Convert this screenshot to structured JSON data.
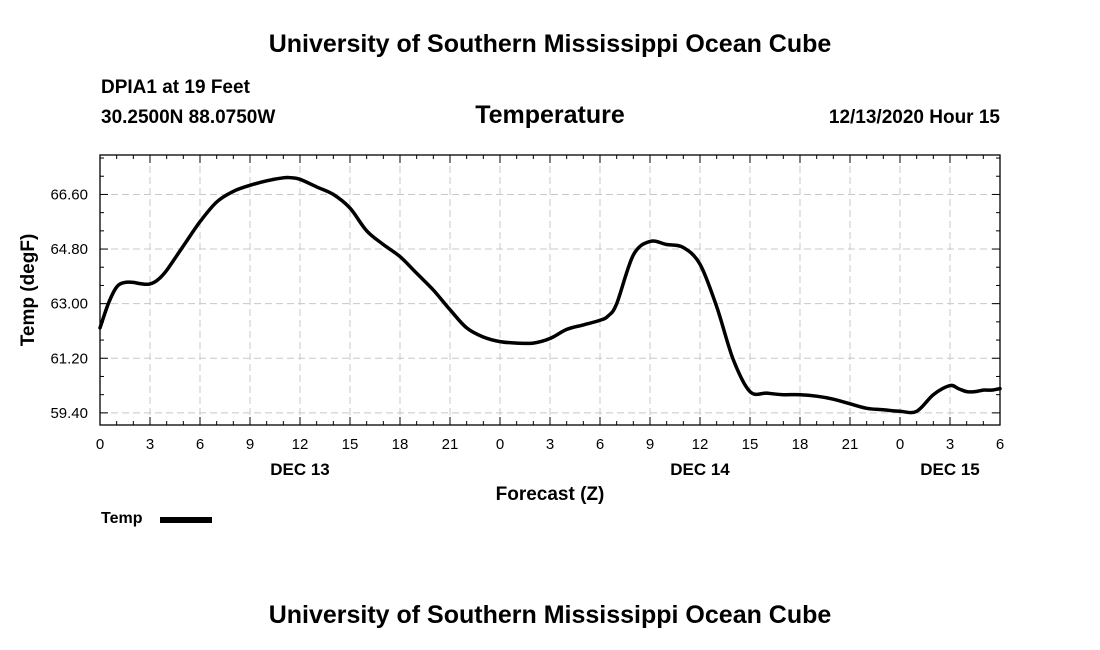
{
  "header": {
    "top_title": "University of Southern Mississippi Ocean Cube",
    "station": "DPIA1 at 19 Feet",
    "coords": "30.2500N 88.0750W",
    "chart_title": "Temperature",
    "datetime": "12/13/2020 Hour 15"
  },
  "footer": {
    "bottom_title": "University of Southern Mississippi Ocean Cube"
  },
  "legend": {
    "label": "Temp",
    "line_color": "#000000"
  },
  "chart_data": {
    "type": "line",
    "title": "Temperature",
    "xlabel": "Forecast (Z)",
    "ylabel": "Temp (degF)",
    "grid": true,
    "xlim": [
      0,
      54
    ],
    "ylim": [
      59.0,
      67.9
    ],
    "x_ticks": [
      0,
      3,
      6,
      9,
      12,
      15,
      18,
      21,
      24,
      27,
      30,
      33,
      36,
      39,
      42,
      45,
      48,
      51,
      54
    ],
    "x_tick_labels": [
      "0",
      "3",
      "6",
      "9",
      "12",
      "15",
      "18",
      "21",
      "0",
      "3",
      "6",
      "9",
      "12",
      "15",
      "18",
      "21",
      "0",
      "3",
      "6"
    ],
    "day_labels": [
      {
        "x": 12,
        "label": "DEC 13"
      },
      {
        "x": 36,
        "label": "DEC 14"
      },
      {
        "x": 51,
        "label": "DEC 15"
      }
    ],
    "y_ticks": [
      59.4,
      61.2,
      63.0,
      64.8,
      66.6
    ],
    "y_tick_labels": [
      "59.40",
      "61.20",
      "63.00",
      "64.80",
      "66.60"
    ],
    "series": [
      {
        "name": "Temp",
        "color": "#000000",
        "x": [
          0,
          0.5,
          1,
          1.5,
          2,
          2.5,
          3,
          3.5,
          4,
          5,
          6,
          7,
          8,
          9,
          10,
          11,
          11.5,
          12,
          13,
          14,
          15,
          16,
          17,
          18,
          19,
          20,
          21,
          22,
          23,
          24,
          25,
          26,
          27,
          28,
          29,
          30,
          30.5,
          31,
          32,
          33,
          34,
          35,
          36,
          37,
          38,
          39,
          40,
          41,
          42,
          43,
          44,
          45,
          46,
          47,
          48,
          49,
          50,
          51,
          51.5,
          52,
          52.5,
          53,
          53.5,
          54
        ],
        "values": [
          62.2,
          63.0,
          63.55,
          63.7,
          63.7,
          63.65,
          63.65,
          63.8,
          64.1,
          64.9,
          65.7,
          66.35,
          66.7,
          66.9,
          67.05,
          67.15,
          67.15,
          67.1,
          66.85,
          66.6,
          66.15,
          65.4,
          64.95,
          64.55,
          64.0,
          63.45,
          62.8,
          62.2,
          61.9,
          61.75,
          61.7,
          61.7,
          61.85,
          62.15,
          62.3,
          62.45,
          62.6,
          63.0,
          64.6,
          65.05,
          64.95,
          64.85,
          64.3,
          62.9,
          61.15,
          60.1,
          60.05,
          60.0,
          60.0,
          59.95,
          59.85,
          59.7,
          59.55,
          59.5,
          59.45,
          59.45,
          60.0,
          60.3,
          60.2,
          60.1,
          60.1,
          60.15,
          60.15,
          60.2
        ]
      }
    ]
  }
}
